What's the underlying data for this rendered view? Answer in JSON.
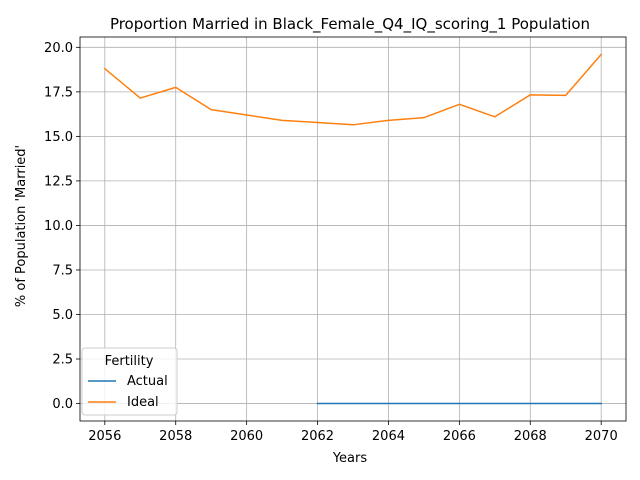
{
  "chart_data": {
    "type": "line",
    "title": "Proportion Married in Black_Female_Q4_IQ_scoring_1 Population",
    "xlabel": "Years",
    "ylabel": "% of Population 'Married'",
    "xlim": [
      2055.3,
      2070.7
    ],
    "ylim": [
      -0.98,
      20.58
    ],
    "xticks": [
      2056,
      2058,
      2060,
      2062,
      2064,
      2066,
      2068,
      2070
    ],
    "yticks": [
      0.0,
      2.5,
      5.0,
      7.5,
      10.0,
      12.5,
      15.0,
      17.5,
      20.0
    ],
    "xtick_labels": [
      "2056",
      "2058",
      "2060",
      "2062",
      "2064",
      "2066",
      "2068",
      "2070"
    ],
    "ytick_labels": [
      "0.0",
      "2.5",
      "5.0",
      "7.5",
      "10.0",
      "12.5",
      "15.0",
      "17.5",
      "20.0"
    ],
    "grid": true,
    "legend": {
      "title": "Fertility",
      "placement": "lower-left"
    },
    "series": [
      {
        "name": "Actual",
        "color": "#1f77b4",
        "x": [
          2062,
          2063,
          2064,
          2065,
          2066,
          2067,
          2068,
          2069,
          2070
        ],
        "y": [
          0.0,
          0.0,
          0.0,
          0.0,
          0.0,
          0.0,
          0.0,
          0.0,
          0.0
        ]
      },
      {
        "name": "Ideal",
        "color": "#ff7f0e",
        "x": [
          2056,
          2057,
          2058,
          2059,
          2060,
          2061,
          2062,
          2063,
          2064,
          2065,
          2066,
          2067,
          2068,
          2069,
          2070
        ],
        "y": [
          18.8,
          17.15,
          17.75,
          16.5,
          16.2,
          15.9,
          15.78,
          15.65,
          15.9,
          16.05,
          16.8,
          16.1,
          17.33,
          17.3,
          19.6
        ]
      }
    ]
  }
}
